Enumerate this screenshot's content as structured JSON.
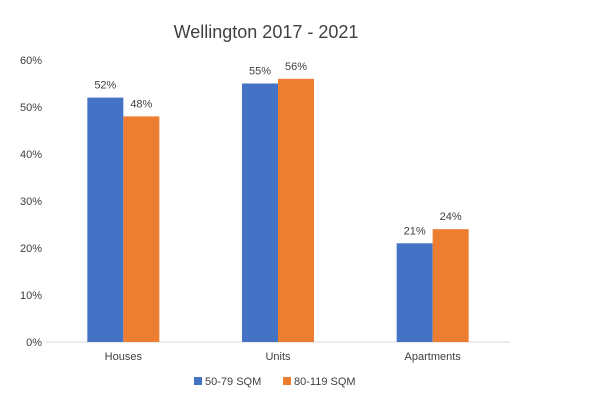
{
  "chart_data": {
    "type": "bar",
    "title": "Wellington 2017 - 2021",
    "categories": [
      "Houses",
      "Units",
      "Apartments"
    ],
    "series": [
      {
        "name": "50-79 SQM",
        "color": "#4472C4",
        "values": [
          52,
          55,
          21
        ],
        "labels": [
          "52%",
          "55%",
          "21%"
        ]
      },
      {
        "name": "80-119 SQM",
        "color": "#ED7D31",
        "values": [
          48,
          56,
          24
        ],
        "labels": [
          "48%",
          "56%",
          "24%"
        ]
      }
    ],
    "y_ticks": [
      0,
      10,
      20,
      30,
      40,
      50,
      60
    ],
    "y_tick_labels": [
      "0%",
      "10%",
      "20%",
      "30%",
      "40%",
      "50%",
      "60%"
    ],
    "ylim": [
      0,
      60
    ],
    "xlabel": "",
    "ylabel": "",
    "grid": false,
    "legend": "bottom"
  }
}
